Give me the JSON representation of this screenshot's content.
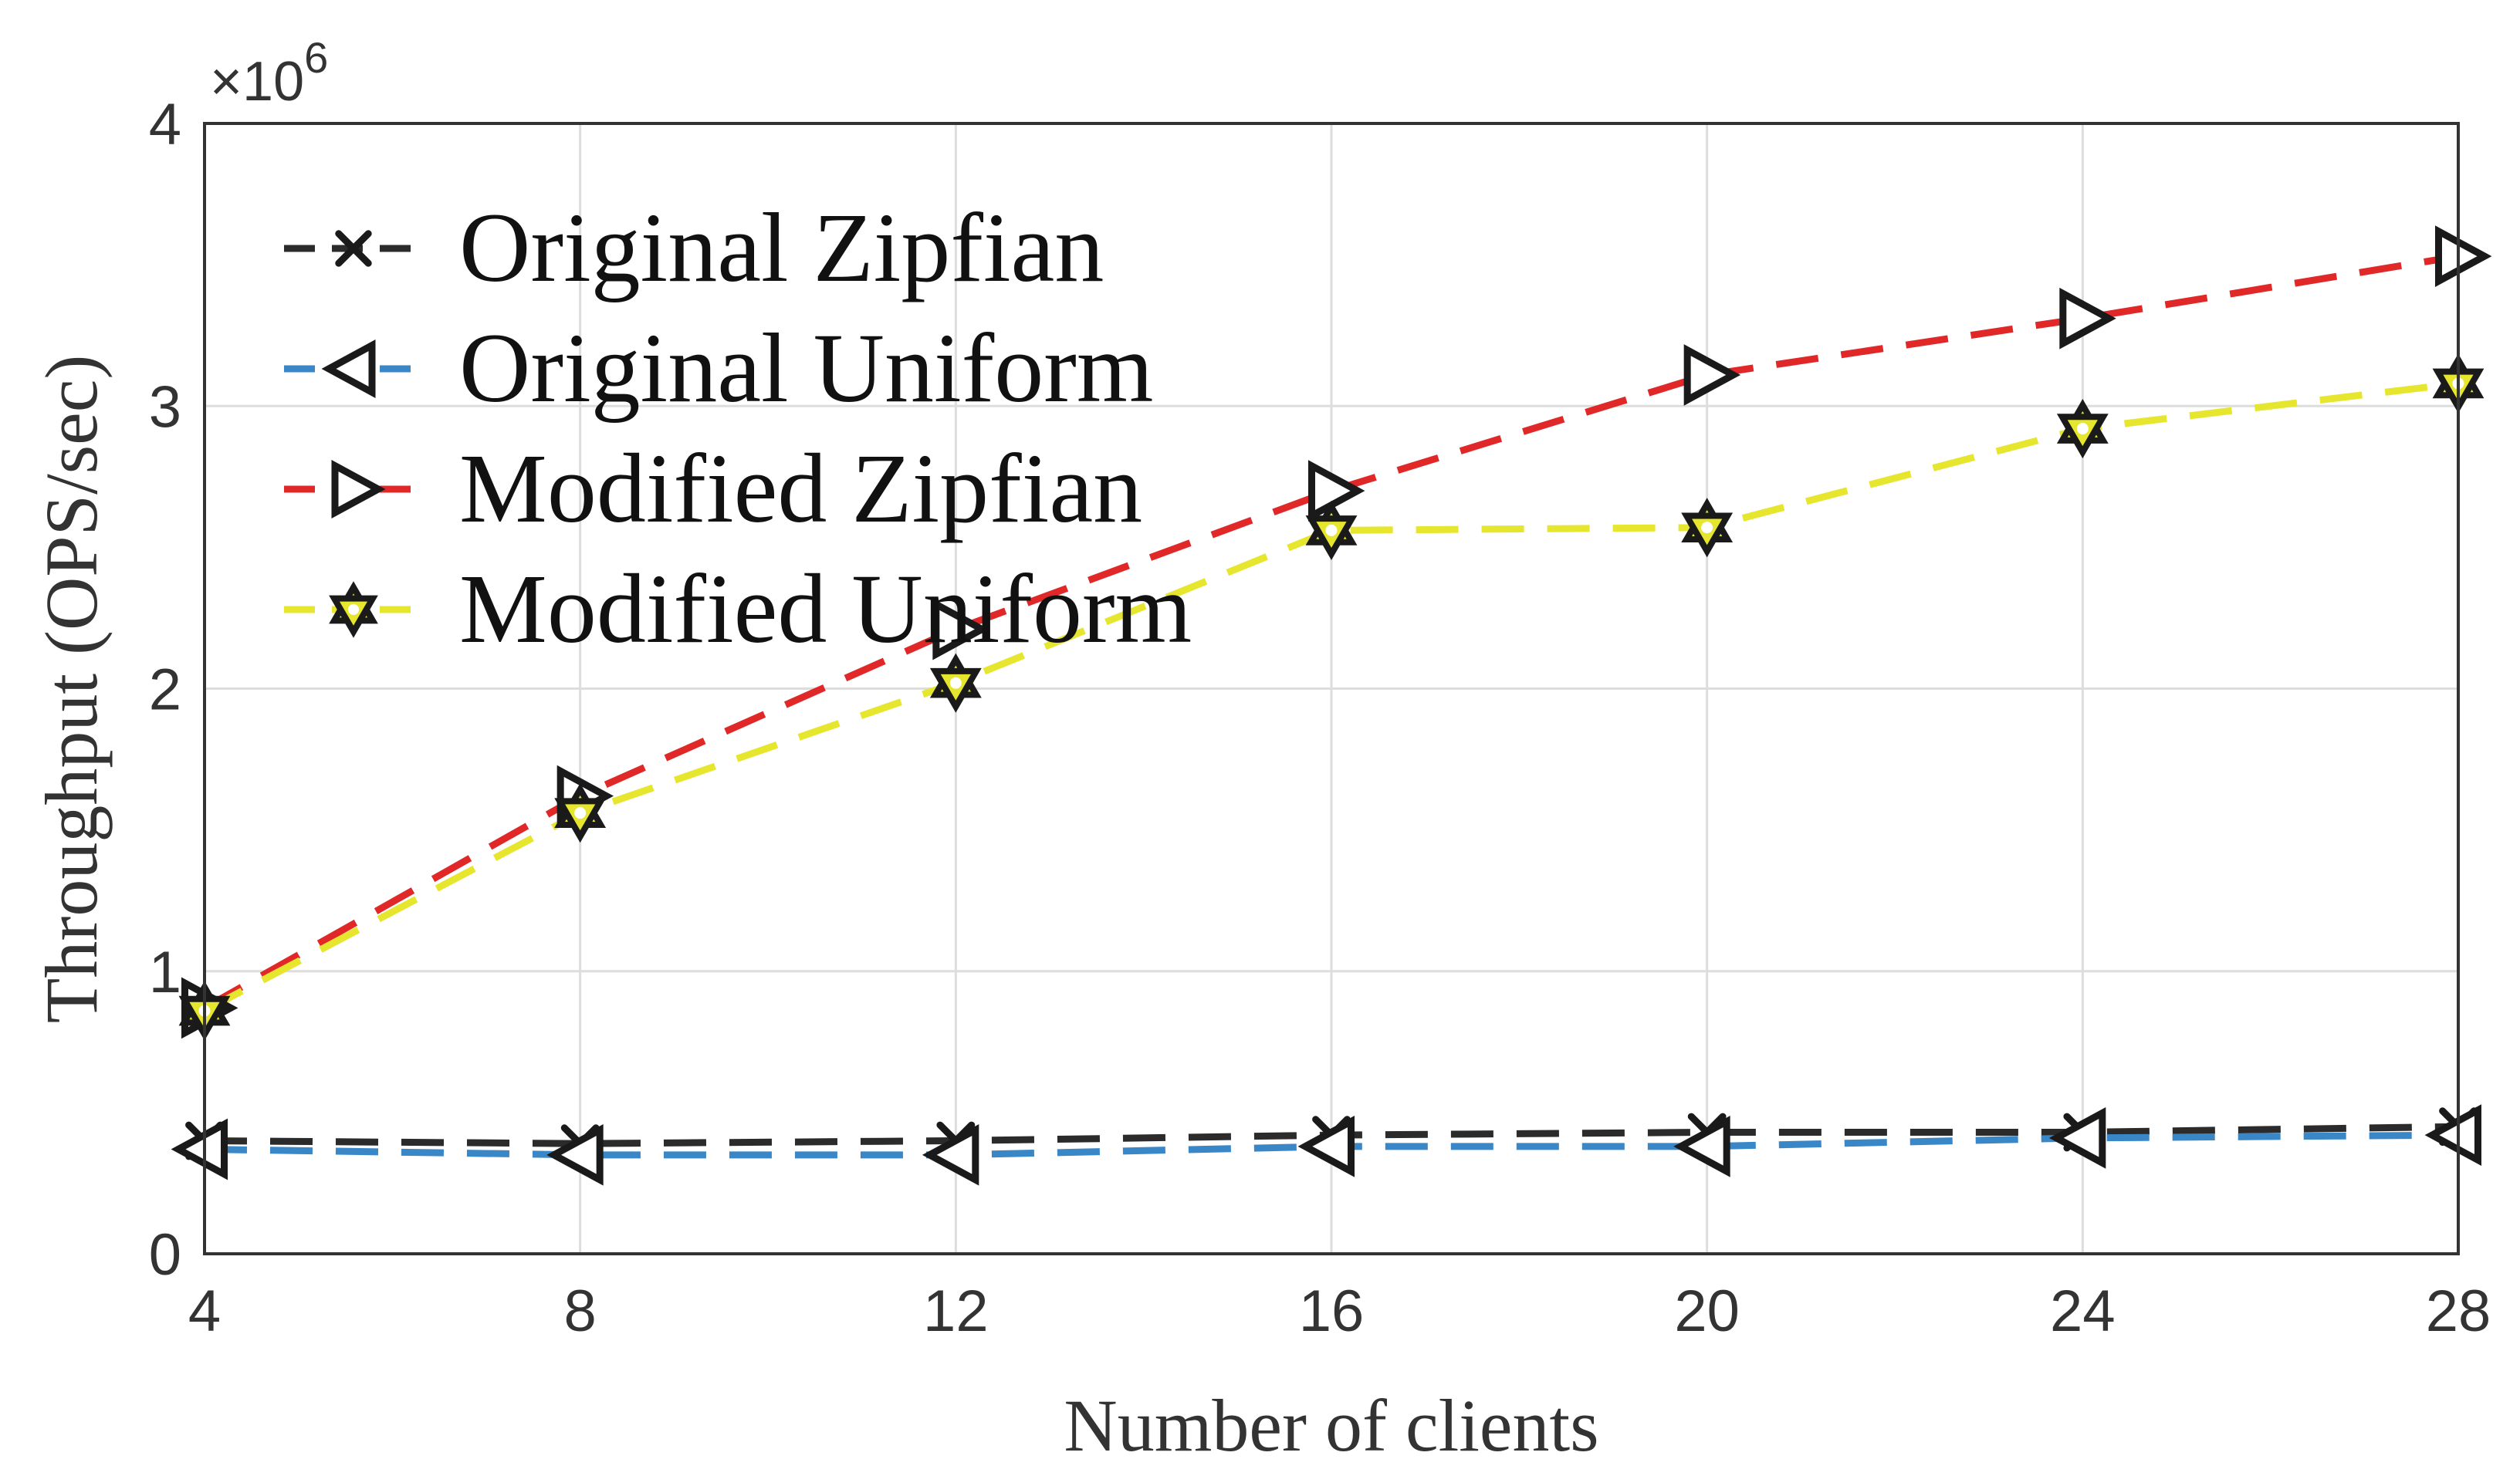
{
  "chart_data": {
    "type": "line",
    "x": [
      4,
      8,
      12,
      16,
      20,
      24,
      28
    ],
    "xlabel": "Number of clients",
    "ylabel": "Throughput (OPS/sec)",
    "y_multiplier_label": "×10",
    "y_multiplier_exponent": "6",
    "xlim": [
      4,
      28
    ],
    "ylim": [
      0,
      4
    ],
    "x_ticks": [
      "4",
      "8",
      "12",
      "16",
      "20",
      "24",
      "28"
    ],
    "y_ticks": [
      "0",
      "1",
      "2",
      "3",
      "4"
    ],
    "grid": true,
    "legend_position": "top-left",
    "series": [
      {
        "name": "Original Zipfian",
        "color": "#2b2b2b",
        "marker": "x",
        "values": [
          0.4,
          0.39,
          0.4,
          0.42,
          0.43,
          0.43,
          0.45
        ]
      },
      {
        "name": "Original Uniform",
        "color": "#3a87c8",
        "marker": "triangle-left",
        "values": [
          0.37,
          0.35,
          0.35,
          0.38,
          0.38,
          0.41,
          0.42
        ]
      },
      {
        "name": "Modified Zipfian",
        "color": "#e02828",
        "marker": "triangle-right",
        "values": [
          0.87,
          1.62,
          2.21,
          2.7,
          3.11,
          3.31,
          3.53
        ]
      },
      {
        "name": "Modified Uniform",
        "color": "#e6e62e",
        "marker": "hexagram",
        "values": [
          0.86,
          1.56,
          2.02,
          2.56,
          2.57,
          2.92,
          3.08
        ]
      }
    ]
  }
}
